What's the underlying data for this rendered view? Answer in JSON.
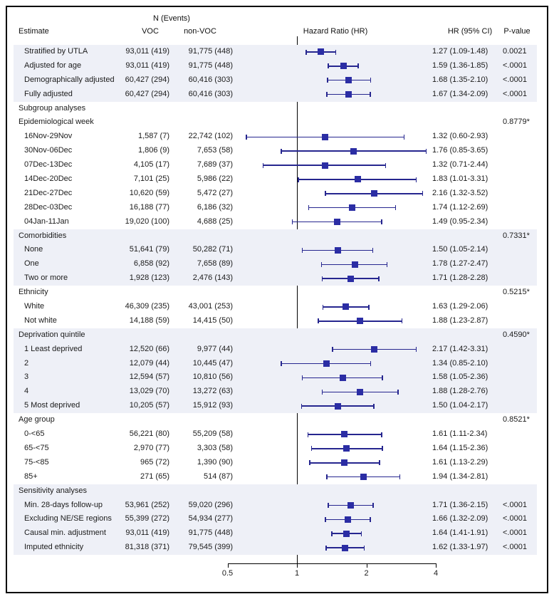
{
  "chart_data": {
    "type": "forest",
    "title": "",
    "xlabel": "Hazard Ratio (HR)",
    "xscale": "log2",
    "xlim": [
      0.5,
      4
    ],
    "xticks": [
      "0.5",
      "1",
      "2",
      "4"
    ],
    "xtick_values": [
      0.5,
      1,
      2,
      4
    ],
    "reference_line": 1,
    "grid": false,
    "colors": {
      "marker": "#2b2da4",
      "ci_line": "#26268f",
      "band": "#eef0f7",
      "reference": "#000000"
    },
    "header": {
      "group": "N (Events)",
      "estimate": "Estimate",
      "voc": "VOC",
      "non_voc": "non-VOC",
      "plot": "Hazard Ratio (HR)",
      "hr_ci": "HR (95% CI)",
      "p": "P-value"
    },
    "sections": [
      {
        "name": "main-estimates",
        "shaded": true,
        "rows": [
          {
            "label": "Stratified by UTLA",
            "indent": true,
            "voc": "93,011 (419)",
            "nonvoc": "91,775 (448)",
            "hr": 1.27,
            "lo": 1.09,
            "hi": 1.48,
            "hr_ci": "1.27 (1.09-1.48)",
            "p": "0.0021"
          },
          {
            "label": "Adjusted for age",
            "indent": true,
            "voc": "93,011 (419)",
            "nonvoc": "91,775 (448)",
            "hr": 1.59,
            "lo": 1.36,
            "hi": 1.85,
            "hr_ci": "1.59 (1.36-1.85)",
            "p": "<.0001"
          },
          {
            "label": "Demographically adjusted",
            "indent": true,
            "voc": "60,427 (294)",
            "nonvoc": "60,416 (303)",
            "hr": 1.68,
            "lo": 1.35,
            "hi": 2.1,
            "hr_ci": "1.68 (1.35-2.10)",
            "p": "<.0001"
          },
          {
            "label": "Fully adjusted",
            "indent": true,
            "voc": "60,427 (294)",
            "nonvoc": "60,416 (303)",
            "hr": 1.67,
            "lo": 1.34,
            "hi": 2.09,
            "hr_ci": "1.67 (1.34-2.09)",
            "p": "<.0001"
          }
        ]
      },
      {
        "name": "epidemiological-week",
        "shaded": false,
        "rows": [
          {
            "label": "Subgroup analyses"
          },
          {
            "label": "Epidemiological week",
            "p": "0.8779*"
          },
          {
            "label": "16Nov-29Nov",
            "indent": true,
            "voc": "1,587 (7)",
            "nonvoc": "22,742 (102)",
            "hr": 1.32,
            "lo": 0.6,
            "hi": 2.93,
            "hr_ci": "1.32 (0.60-2.93)"
          },
          {
            "label": "30Nov-06Dec",
            "indent": true,
            "voc": "1,806 (9)",
            "nonvoc": "7,653 (58)",
            "hr": 1.76,
            "lo": 0.85,
            "hi": 3.65,
            "hr_ci": "1.76 (0.85-3.65)"
          },
          {
            "label": "07Dec-13Dec",
            "indent": true,
            "voc": "4,105 (17)",
            "nonvoc": "7,689 (37)",
            "hr": 1.32,
            "lo": 0.71,
            "hi": 2.44,
            "hr_ci": "1.32 (0.71-2.44)"
          },
          {
            "label": "14Dec-20Dec",
            "indent": true,
            "voc": "7,101 (25)",
            "nonvoc": "5,986 (22)",
            "hr": 1.83,
            "lo": 1.01,
            "hi": 3.31,
            "hr_ci": "1.83 (1.01-3.31)"
          },
          {
            "label": "21Dec-27Dec",
            "indent": true,
            "voc": "10,620 (59)",
            "nonvoc": "5,472 (27)",
            "hr": 2.16,
            "lo": 1.32,
            "hi": 3.52,
            "hr_ci": "2.16 (1.32-3.52)"
          },
          {
            "label": "28Dec-03Dec",
            "indent": true,
            "voc": "16,188 (77)",
            "nonvoc": "6,186 (32)",
            "hr": 1.74,
            "lo": 1.12,
            "hi": 2.69,
            "hr_ci": "1.74 (1.12-2.69)"
          },
          {
            "label": "04Jan-11Jan",
            "indent": true,
            "voc": "19,020 (100)",
            "nonvoc": "4,688 (25)",
            "hr": 1.49,
            "lo": 0.95,
            "hi": 2.34,
            "hr_ci": "1.49 (0.95-2.34)"
          }
        ]
      },
      {
        "name": "comorbidities",
        "shaded": true,
        "rows": [
          {
            "label": "Comorbidities",
            "p": "0.7331*"
          },
          {
            "label": "None",
            "indent": true,
            "voc": "51,641 (79)",
            "nonvoc": "50,282 (71)",
            "hr": 1.5,
            "lo": 1.05,
            "hi": 2.14,
            "hr_ci": "1.50 (1.05-2.14)"
          },
          {
            "label": "One",
            "indent": true,
            "voc": "6,858 (92)",
            "nonvoc": "7,658 (89)",
            "hr": 1.78,
            "lo": 1.27,
            "hi": 2.47,
            "hr_ci": "1.78 (1.27-2.47)"
          },
          {
            "label": "Two or more",
            "indent": true,
            "voc": "1,928 (123)",
            "nonvoc": "2,476 (143)",
            "hr": 1.71,
            "lo": 1.28,
            "hi": 2.28,
            "hr_ci": "1.71 (1.28-2.28)"
          }
        ]
      },
      {
        "name": "ethnicity",
        "shaded": false,
        "rows": [
          {
            "label": "Ethnicity",
            "p": "0.5215*"
          },
          {
            "label": "White",
            "indent": true,
            "voc": "46,309 (235)",
            "nonvoc": "43,001 (253)",
            "hr": 1.63,
            "lo": 1.29,
            "hi": 2.06,
            "hr_ci": "1.63 (1.29-2.06)"
          },
          {
            "label": "Not white",
            "indent": true,
            "voc": "14,188 (59)",
            "nonvoc": "14,415 (50)",
            "hr": 1.88,
            "lo": 1.23,
            "hi": 2.87,
            "hr_ci": "1.88 (1.23-2.87)"
          }
        ]
      },
      {
        "name": "deprivation-quintile",
        "shaded": true,
        "rows": [
          {
            "label": "Deprivation quintile",
            "p": "0.4590*"
          },
          {
            "label": "1 Least deprived",
            "indent": true,
            "voc": "12,520 (66)",
            "nonvoc": "9,977 (44)",
            "hr": 2.17,
            "lo": 1.42,
            "hi": 3.31,
            "hr_ci": "2.17 (1.42-3.31)"
          },
          {
            "label": "2",
            "indent": true,
            "voc": "12,079 (44)",
            "nonvoc": "10,445 (47)",
            "hr": 1.34,
            "lo": 0.85,
            "hi": 2.1,
            "hr_ci": "1.34 (0.85-2.10)"
          },
          {
            "label": "3",
            "indent": true,
            "voc": "12,594 (57)",
            "nonvoc": "10,810 (56)",
            "hr": 1.58,
            "lo": 1.05,
            "hi": 2.36,
            "hr_ci": "1.58 (1.05-2.36)"
          },
          {
            "label": "4",
            "indent": true,
            "voc": "13,029 (70)",
            "nonvoc": "13,272 (63)",
            "hr": 1.88,
            "lo": 1.28,
            "hi": 2.76,
            "hr_ci": "1.88 (1.28-2.76)"
          },
          {
            "label": "5 Most deprived",
            "indent": true,
            "voc": "10,205 (57)",
            "nonvoc": "15,912 (93)",
            "hr": 1.5,
            "lo": 1.04,
            "hi": 2.17,
            "hr_ci": "1.50 (1.04-2.17)"
          }
        ]
      },
      {
        "name": "age-group",
        "shaded": false,
        "rows": [
          {
            "label": "Age group",
            "p": "0.8521*"
          },
          {
            "label": "0-<65",
            "indent": true,
            "voc": "56,221 (80)",
            "nonvoc": "55,209 (58)",
            "hr": 1.61,
            "lo": 1.11,
            "hi": 2.34,
            "hr_ci": "1.61 (1.11-2.34)"
          },
          {
            "label": "65-<75",
            "indent": true,
            "voc": "2,970 (77)",
            "nonvoc": "3,303 (58)",
            "hr": 1.64,
            "lo": 1.15,
            "hi": 2.36,
            "hr_ci": "1.64 (1.15-2.36)"
          },
          {
            "label": "75-<85",
            "indent": true,
            "voc": "965 (72)",
            "nonvoc": "1,390 (90)",
            "hr": 1.61,
            "lo": 1.13,
            "hi": 2.29,
            "hr_ci": "1.61 (1.13-2.29)"
          },
          {
            "label": "85+",
            "indent": true,
            "voc": "271 (65)",
            "nonvoc": "514 (87)",
            "hr": 1.94,
            "lo": 1.34,
            "hi": 2.81,
            "hr_ci": "1.94 (1.34-2.81)"
          }
        ]
      },
      {
        "name": "sensitivity-analyses",
        "shaded": true,
        "rows": [
          {
            "label": "Sensitivity analyses"
          },
          {
            "label": "Min. 28-days follow-up",
            "indent": true,
            "voc": "53,961 (252)",
            "nonvoc": "59,020 (296)",
            "hr": 1.71,
            "lo": 1.36,
            "hi": 2.15,
            "hr_ci": "1.71 (1.36-2.15)",
            "p": "<.0001"
          },
          {
            "label": "Excluding NE/SE regions",
            "indent": true,
            "voc": "55,399 (272)",
            "nonvoc": "54,934 (277)",
            "hr": 1.66,
            "lo": 1.32,
            "hi": 2.09,
            "hr_ci": "1.66 (1.32-2.09)",
            "p": "<.0001"
          },
          {
            "label": "Causal min. adjustment",
            "indent": true,
            "voc": "93,011 (419)",
            "nonvoc": "91,775 (448)",
            "hr": 1.64,
            "lo": 1.41,
            "hi": 1.91,
            "hr_ci": "1.64 (1.41-1.91)",
            "p": "<.0001"
          },
          {
            "label": "Imputed ethnicity",
            "indent": true,
            "voc": "81,318 (371)",
            "nonvoc": "79,545 (399)",
            "hr": 1.62,
            "lo": 1.33,
            "hi": 1.97,
            "hr_ci": "1.62 (1.33-1.97)",
            "p": "<.0001"
          }
        ]
      }
    ]
  }
}
